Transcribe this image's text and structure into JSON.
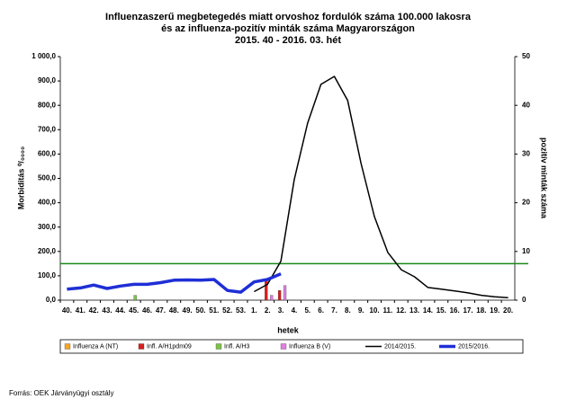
{
  "chart_data": {
    "type": "bar",
    "title": [
      "Influenzaszerű megbetegedés miatt orvoshoz fordulók száma 100.000 lakosra",
      "és az influenza-pozitív minták száma Magyarországon",
      "2015. 40 - 2016. 03. hét"
    ],
    "xlabel": "hetek",
    "ylabel": "Morbiditás ⁰/₀₀₀₀",
    "y2label": "pozitív minták száma",
    "categories": [
      "40.",
      "41.",
      "42.",
      "43.",
      "44.",
      "45.",
      "46.",
      "47.",
      "48.",
      "49.",
      "50.",
      "51.",
      "52.",
      "53.",
      "1.",
      "2.",
      "3.",
      "4.",
      "5.",
      "6.",
      "7.",
      "8.",
      "9.",
      "10.",
      "11.",
      "12.",
      "13.",
      "14.",
      "15.",
      "16.",
      "17.",
      "18.",
      "19.",
      "20."
    ],
    "ylim": [
      0,
      1000
    ],
    "yticks": [
      {
        "value": 0,
        "label": "0,0"
      },
      {
        "value": 100,
        "label": "100,0"
      },
      {
        "value": 200,
        "label": "200,0"
      },
      {
        "value": 300,
        "label": "300,0"
      },
      {
        "value": 400,
        "label": "400,0"
      },
      {
        "value": 500,
        "label": "500,0"
      },
      {
        "value": 600,
        "label": "600,0"
      },
      {
        "value": 700,
        "label": "700,0"
      },
      {
        "value": 800,
        "label": "800,0"
      },
      {
        "value": 900,
        "label": "900,0"
      },
      {
        "value": 1000,
        "label": "1 000,0"
      }
    ],
    "y2lim": [
      0,
      50
    ],
    "y2ticks": [
      0,
      10,
      20,
      30,
      40,
      50
    ],
    "threshold": 150,
    "threshold_color": "#1a8a1a",
    "series": [
      {
        "name": "Influenza A (NT)",
        "type": "bar",
        "axis": "y2",
        "color": "#f5a623",
        "values": [
          0,
          0,
          0,
          0,
          0,
          0,
          0,
          0,
          0,
          0,
          0,
          0,
          0,
          0,
          0,
          0,
          0,
          0,
          0,
          0,
          0,
          0,
          0,
          0,
          0,
          0,
          0,
          0,
          0,
          0,
          0,
          0,
          0,
          0
        ]
      },
      {
        "name": "Infl. A/H1pdm09",
        "type": "bar",
        "axis": "y2",
        "color": "#d81e1e",
        "values": [
          0,
          0,
          0,
          0,
          0,
          0,
          0,
          0,
          0,
          0,
          0,
          0,
          0,
          0,
          0,
          4,
          2,
          0,
          0,
          0,
          0,
          0,
          0,
          0,
          0,
          0,
          0,
          0,
          0,
          0,
          0,
          0,
          0,
          0
        ]
      },
      {
        "name": "Infl. A/H3",
        "type": "bar",
        "axis": "y2",
        "color": "#7dc24b",
        "values": [
          0,
          0,
          0,
          0,
          0,
          1,
          0,
          0,
          0,
          0,
          0,
          0,
          0,
          0,
          0,
          0,
          0,
          0,
          0,
          0,
          0,
          0,
          0,
          0,
          0,
          0,
          0,
          0,
          0,
          0,
          0,
          0,
          0,
          0
        ]
      },
      {
        "name": "Influenza B (V)",
        "type": "bar",
        "axis": "y2",
        "color": "#e27de2",
        "values": [
          0,
          0,
          0,
          0,
          0,
          0,
          0,
          0,
          0,
          0,
          0,
          0,
          0,
          0,
          0,
          1,
          3,
          0,
          0,
          0,
          0,
          0,
          0,
          0,
          0,
          0,
          0,
          0,
          0,
          0,
          0,
          0,
          0,
          0
        ]
      },
      {
        "name": "2014/2015.",
        "type": "line",
        "color": "#000000",
        "width": 1.5,
        "values": [
          null,
          null,
          null,
          null,
          null,
          null,
          null,
          null,
          null,
          null,
          null,
          null,
          null,
          null,
          35,
          65,
          160,
          494,
          727,
          886,
          919,
          820,
          561,
          343,
          196,
          125,
          96,
          52,
          45,
          38,
          30,
          20,
          14,
          10
        ]
      },
      {
        "name": "2015/2016.",
        "type": "line",
        "color": "#1f2fd6",
        "width": 3.5,
        "values": [
          45,
          50,
          62,
          48,
          58,
          65,
          65,
          72,
          82,
          83,
          82,
          85,
          40,
          33,
          75,
          85,
          108,
          null,
          null,
          null,
          null,
          null,
          null,
          null,
          null,
          null,
          null,
          null,
          null,
          null,
          null,
          null,
          null,
          null
        ]
      }
    ],
    "source": "Forrás: OEK Járványügyi osztály"
  }
}
